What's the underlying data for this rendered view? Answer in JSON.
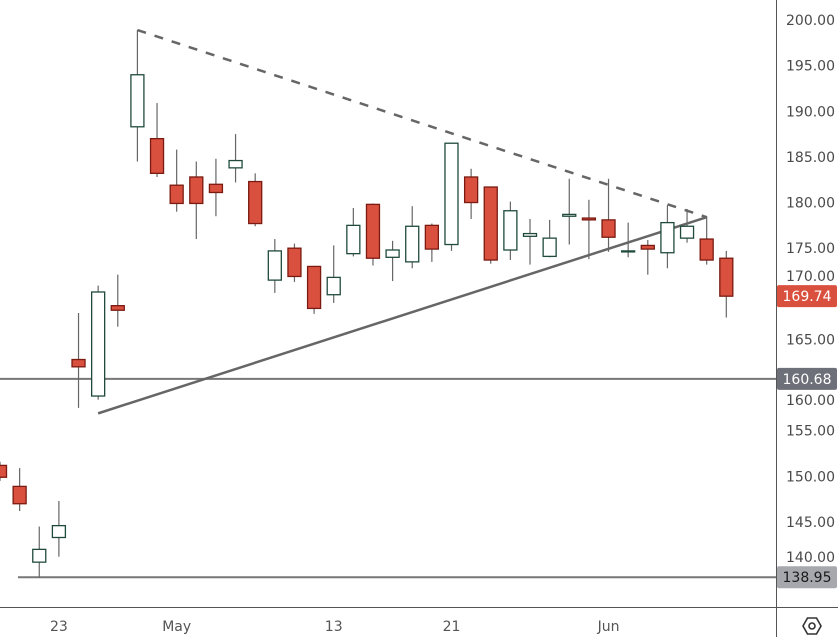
{
  "chart_data": {
    "type": "candlestick",
    "title": "",
    "xlabel": "",
    "ylabel": "",
    "ylim": [
      137.5,
      202.2
    ],
    "grid": false,
    "colors": {
      "up_fill": "#ffffff",
      "up_border": "#1f4a3c",
      "down_fill": "#d9503f",
      "down_border": "#7a1a10",
      "wick": "#666666",
      "line": "#666666"
    },
    "y_ticks": [
      "200.00",
      "195.00",
      "190.00",
      "185.00",
      "180.00",
      "175.00",
      "170.00",
      "165.00",
      "160.00",
      "155.00",
      "150.00",
      "145.00",
      "140.00"
    ],
    "x_ticks": [
      {
        "date": "Apr 23",
        "label": "23"
      },
      {
        "date": "May 1",
        "label": "May"
      },
      {
        "date": "May 13",
        "label": "13"
      },
      {
        "date": "May 21",
        "label": "21"
      },
      {
        "date": "Jun 3",
        "label": "Jun"
      }
    ],
    "candles": [
      {
        "date": "Apr 18",
        "o": 151.2,
        "h": 151.6,
        "l": 149.5,
        "c": 149.9
      },
      {
        "date": "Apr 19",
        "o": 148.9,
        "h": 150.9,
        "l": 146.2,
        "c": 147.0
      },
      {
        "date": "Apr 22",
        "o": 140.6,
        "h": 144.5,
        "l": 138.9,
        "c": 142.0
      },
      {
        "date": "Apr 23",
        "o": 143.3,
        "h": 147.3,
        "l": 141.2,
        "c": 144.6
      },
      {
        "date": "Apr 24",
        "o": 162.8,
        "h": 167.9,
        "l": 157.5,
        "c": 162.0
      },
      {
        "date": "Apr 25",
        "o": 158.8,
        "h": 170.9,
        "l": 158.4,
        "c": 170.2
      },
      {
        "date": "Apr 26",
        "o": 168.7,
        "h": 172.1,
        "l": 166.4,
        "c": 168.2
      },
      {
        "date": "Apr 29",
        "o": 188.3,
        "h": 198.9,
        "l": 184.5,
        "c": 194.0
      },
      {
        "date": "Apr 30",
        "o": 187.0,
        "h": 190.9,
        "l": 182.8,
        "c": 183.2
      },
      {
        "date": "May 1",
        "o": 181.9,
        "h": 185.8,
        "l": 179.0,
        "c": 179.9
      },
      {
        "date": "May 2",
        "o": 182.8,
        "h": 184.5,
        "l": 176.0,
        "c": 179.9
      },
      {
        "date": "May 3",
        "o": 182.0,
        "h": 184.8,
        "l": 178.5,
        "c": 181.1
      },
      {
        "date": "May 6",
        "o": 183.8,
        "h": 187.5,
        "l": 182.2,
        "c": 184.6
      },
      {
        "date": "May 7",
        "o": 182.3,
        "h": 183.2,
        "l": 177.4,
        "c": 177.7
      },
      {
        "date": "May 8",
        "o": 171.5,
        "h": 176.0,
        "l": 170.1,
        "c": 174.7
      },
      {
        "date": "May 9",
        "o": 175.0,
        "h": 175.5,
        "l": 171.3,
        "c": 171.9
      },
      {
        "date": "May 10",
        "o": 173.0,
        "h": 173.0,
        "l": 167.8,
        "c": 168.4
      },
      {
        "date": "May 13",
        "o": 169.9,
        "h": 175.3,
        "l": 169.0,
        "c": 171.8
      },
      {
        "date": "May 14",
        "o": 174.4,
        "h": 179.4,
        "l": 174.1,
        "c": 177.5
      },
      {
        "date": "May 15",
        "o": 179.8,
        "h": 179.9,
        "l": 173.1,
        "c": 173.9
      },
      {
        "date": "May 16",
        "o": 174.0,
        "h": 175.8,
        "l": 171.4,
        "c": 174.8
      },
      {
        "date": "May 17",
        "o": 173.5,
        "h": 179.6,
        "l": 172.8,
        "c": 177.4
      },
      {
        "date": "May 20",
        "o": 177.5,
        "h": 177.7,
        "l": 173.5,
        "c": 174.9
      },
      {
        "date": "May 21",
        "o": 175.4,
        "h": 186.5,
        "l": 174.7,
        "c": 186.5
      },
      {
        "date": "May 22",
        "o": 182.8,
        "h": 183.7,
        "l": 178.2,
        "c": 180.0
      },
      {
        "date": "May 23",
        "o": 181.7,
        "h": 181.7,
        "l": 173.3,
        "c": 173.7
      },
      {
        "date": "May 24",
        "o": 174.8,
        "h": 180.1,
        "l": 173.7,
        "c": 179.1
      },
      {
        "date": "May 28",
        "o": 176.3,
        "h": 178.2,
        "l": 173.2,
        "c": 176.6
      },
      {
        "date": "May 29",
        "o": 174.1,
        "h": 178.1,
        "l": 174.0,
        "c": 176.1
      },
      {
        "date": "May 30",
        "o": 178.5,
        "h": 182.6,
        "l": 175.4,
        "c": 178.7
      },
      {
        "date": "May 31",
        "o": 178.3,
        "h": 180.3,
        "l": 173.8,
        "c": 178.1
      },
      {
        "date": "Jun 3",
        "o": 178.1,
        "h": 182.6,
        "l": 174.6,
        "c": 176.2
      },
      {
        "date": "Jun 4",
        "o": 174.7,
        "h": 177.8,
        "l": 174.0,
        "c": 174.7
      },
      {
        "date": "Jun 5",
        "o": 175.3,
        "h": 175.9,
        "l": 172.1,
        "c": 174.9
      },
      {
        "date": "Jun 6",
        "o": 174.5,
        "h": 179.7,
        "l": 172.8,
        "c": 177.8
      },
      {
        "date": "Jun 7",
        "o": 176.1,
        "h": 179.3,
        "l": 175.6,
        "c": 177.4
      },
      {
        "date": "Jun 10",
        "o": 176.0,
        "h": 178.5,
        "l": 173.2,
        "c": 173.7
      },
      {
        "date": "Jun 11",
        "o": 173.9,
        "h": 174.7,
        "l": 167.4,
        "c": 169.74
      }
    ],
    "trendlines": [
      {
        "style": "dashed",
        "from": {
          "date": "Apr 29",
          "value": 198.9
        },
        "to": {
          "date": "Jun 10",
          "value": 178.4
        }
      },
      {
        "style": "solid",
        "from": {
          "date": "Apr 25",
          "value": 156.9
        },
        "to": {
          "date": "Jun 10",
          "value": 178.4
        }
      }
    ],
    "horizontal_lines": [
      {
        "value": 160.68,
        "label": "160.68",
        "badge_color": "#6e7079",
        "text_color": "#ffffff"
      },
      {
        "value": 138.95,
        "label": "138.95",
        "badge_color": "#a6a8ad",
        "text_color": "#1a1a1a"
      }
    ],
    "last_price": {
      "value": 169.74,
      "label": "169.74",
      "badge_color": "#d9503f",
      "text_color": "#ffffff"
    }
  },
  "toolbar": {
    "settings_icon": "hexagon-settings-icon"
  }
}
